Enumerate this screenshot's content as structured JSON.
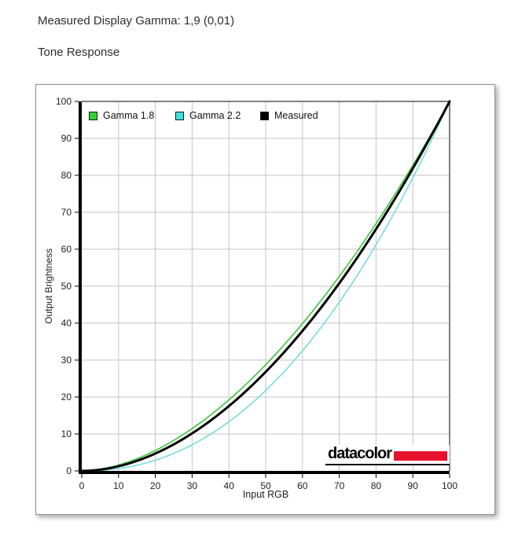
{
  "header": {
    "measured_gamma_line": "Measured Display Gamma: 1,9 (0,01)",
    "section_title": "Tone Response"
  },
  "chart_data": {
    "type": "line",
    "title": "Tone Response",
    "xlabel": "Input RGB",
    "ylabel": "Output Brightness",
    "xlim": [
      0,
      100
    ],
    "ylim": [
      0,
      100
    ],
    "xticks": [
      0,
      10,
      20,
      30,
      40,
      50,
      60,
      70,
      80,
      90,
      100
    ],
    "yticks": [
      0,
      10,
      20,
      30,
      40,
      50,
      60,
      70,
      80,
      90,
      100
    ],
    "grid": true,
    "legend_position": "top-inside",
    "x": [
      0,
      10,
      20,
      30,
      40,
      50,
      60,
      70,
      80,
      90,
      100
    ],
    "series": [
      {
        "name": "Gamma 1.8",
        "gamma": 1.8,
        "color": "#3dc53d",
        "swatch_color": "#2fd32f",
        "line_width": 1.6,
        "values": [
          0,
          1.6,
          5.5,
          11.5,
          19.2,
          28.7,
          39.9,
          52.6,
          66.9,
          82.7,
          100
        ]
      },
      {
        "name": "Gamma 2.2",
        "gamma": 2.2,
        "color": "#79dcdc",
        "swatch_color": "#3fe0e0",
        "line_width": 1.6,
        "values": [
          0,
          0.6,
          2.9,
          7.1,
          13.3,
          21.8,
          32.5,
          45.6,
          61.2,
          79.3,
          100
        ]
      },
      {
        "name": "Measured",
        "gamma": 1.9,
        "color": "#000000",
        "swatch_color": "#000000",
        "line_width": 3,
        "values": [
          0,
          1.3,
          4.7,
          10.1,
          17.5,
          26.8,
          37.9,
          50.8,
          65.5,
          81.9,
          100
        ]
      }
    ],
    "colors": {
      "grid": "#c4c4c4",
      "axis": "#000000",
      "tick_text": "#222222"
    }
  },
  "logo": {
    "text": "datacolor",
    "bar_color": "#e8112d"
  }
}
